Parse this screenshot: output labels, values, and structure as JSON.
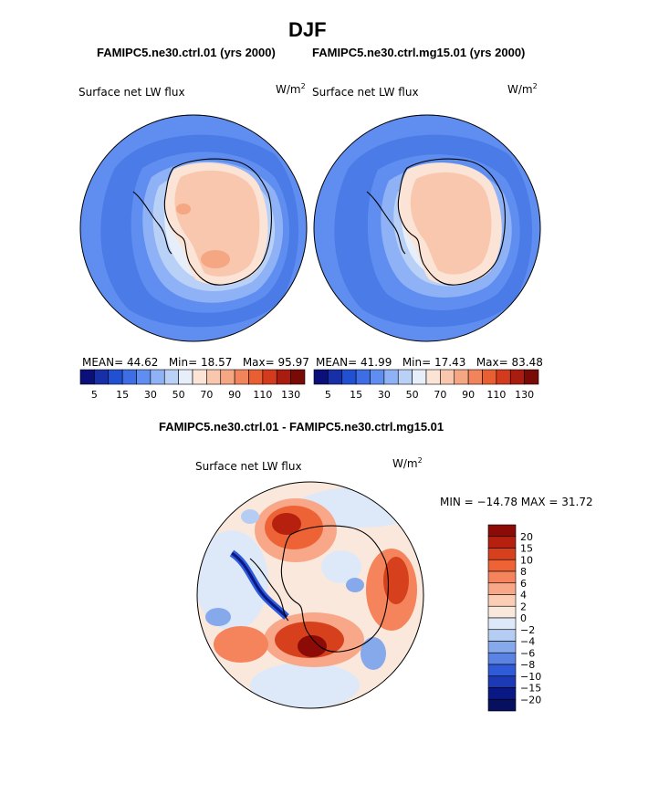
{
  "title": "DJF",
  "panels": [
    {
      "heading": "FAMIPC5.ne30.ctrl.01 (yrs 2000)",
      "field_label": "Surface net LW flux",
      "units_base": "W/m",
      "units_exp": "2",
      "stats": {
        "mean_label": "MEAN=",
        "mean": "44.62",
        "min_label": "Min=",
        "min": "18.57",
        "max_label": "Max=",
        "max": "95.97"
      }
    },
    {
      "heading": "FAMIPC5.ne30.ctrl.mg15.01 (yrs 2000)",
      "field_label": "Surface net LW flux",
      "units_base": "W/m",
      "units_exp": "2",
      "stats": {
        "mean_label": "MEAN=",
        "mean": "41.99",
        "min_label": "Min=",
        "min": "17.43",
        "max_label": "Max=",
        "max": "83.48"
      }
    }
  ],
  "diff": {
    "heading": "FAMIPC5.ne30.ctrl.01 - FAMIPC5.ne30.ctrl.mg15.01",
    "field_label": "Surface net LW flux",
    "units_base": "W/m",
    "units_exp": "2",
    "minmax_text": "MIN = −14.78 MAX =  31.72"
  },
  "chart_data": [
    {
      "type": "heatmap",
      "projection": "south-polar-stereographic",
      "title": "FAMIPC5.ne30.ctrl.01 (yrs 2000)",
      "variable": "Surface net LW flux",
      "units": "W/m^2",
      "mean": 44.62,
      "min": 18.57,
      "max": 95.97,
      "colorbar_levels": [
        5,
        10,
        15,
        20,
        25,
        30,
        40,
        50,
        60,
        70,
        80,
        90,
        100,
        110,
        120,
        130
      ],
      "colorbar_tick_labels": [
        "5",
        "15",
        "30",
        "50",
        "70",
        "90",
        "110",
        "130"
      ]
    },
    {
      "type": "heatmap",
      "projection": "south-polar-stereographic",
      "title": "FAMIPC5.ne30.ctrl.mg15.01 (yrs 2000)",
      "variable": "Surface net LW flux",
      "units": "W/m^2",
      "mean": 41.99,
      "min": 17.43,
      "max": 83.48,
      "colorbar_levels": [
        5,
        10,
        15,
        20,
        25,
        30,
        40,
        50,
        60,
        70,
        80,
        90,
        100,
        110,
        120,
        130
      ],
      "colorbar_tick_labels": [
        "5",
        "15",
        "30",
        "50",
        "70",
        "90",
        "110",
        "130"
      ]
    },
    {
      "type": "heatmap",
      "projection": "south-polar-stereographic",
      "title": "FAMIPC5.ne30.ctrl.01 - FAMIPC5.ne30.ctrl.mg15.01",
      "variable": "Surface net LW flux",
      "units": "W/m^2",
      "min": -14.78,
      "max": 31.72,
      "colorbar_levels": [
        20,
        15,
        10,
        8,
        6,
        4,
        2,
        0,
        -2,
        -4,
        -6,
        -8,
        -10,
        -15,
        -20
      ],
      "colorbar_tick_labels": [
        "20",
        "15",
        "10",
        "8",
        "6",
        "4",
        "2",
        "0",
        "−2",
        "−4",
        "−6",
        "−8",
        "−10",
        "−15",
        "−20"
      ]
    }
  ],
  "colors": {
    "abs_scale": [
      "#0a0f7a",
      "#1730a8",
      "#2250d2",
      "#3d6ee6",
      "#5f8ef0",
      "#8eb2f5",
      "#b9d0f7",
      "#e6eefa",
      "#fbe3d6",
      "#f8c7ad",
      "#f5a683",
      "#f2845c",
      "#ea5e33",
      "#d43a1c",
      "#a91d10",
      "#7a0a06"
    ],
    "diff_scale": [
      "#8c0b07",
      "#b5200f",
      "#d7401c",
      "#ee6335",
      "#f5845c",
      "#f8a888",
      "#fbcdb4",
      "#fbe8dc",
      "#dde9f8",
      "#b6cdf3",
      "#86a9ec",
      "#5a83e3",
      "#2f5ad8",
      "#1c39b8",
      "#0a1886",
      "#06105e"
    ],
    "ocean": "#5b8de8",
    "ice": "#f7c8ad",
    "coastline": "#000000"
  }
}
